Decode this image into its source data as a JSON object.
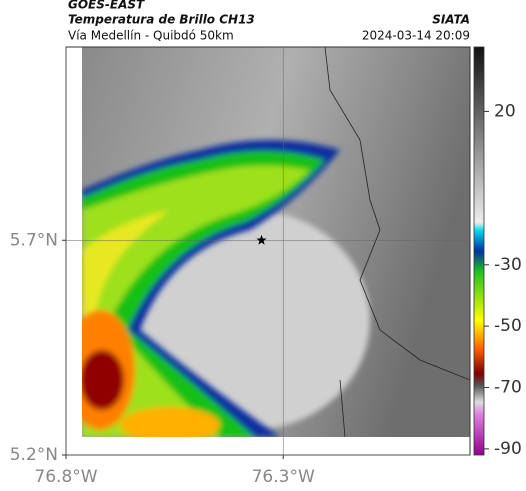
{
  "header": {
    "source": "GOES-EAST",
    "title": "Temperatura de Brillo CH13",
    "org": "SIATA",
    "subtitle": "Vía Medellín - Quibdó 50km",
    "timestamp": "2024-03-14 20:09"
  },
  "map": {
    "xlim": [
      -76.8,
      -75.87
    ],
    "ylim": [
      5.2,
      6.15
    ],
    "xticks": [
      {
        "value": -76.8,
        "label": "76.8°W"
      },
      {
        "value": -76.3,
        "label": "76.3°W"
      }
    ],
    "yticks": [
      {
        "value": 5.7,
        "label": "5.7°N"
      },
      {
        "value": 5.2,
        "label": "5.2°N"
      }
    ],
    "grid": true,
    "marker": {
      "lon": -76.35,
      "lat": 5.7
    }
  },
  "colorbar": {
    "lim": [
      -92,
      41
    ],
    "ticks": [
      20,
      -30,
      -50,
      -70,
      -90
    ]
  }
}
